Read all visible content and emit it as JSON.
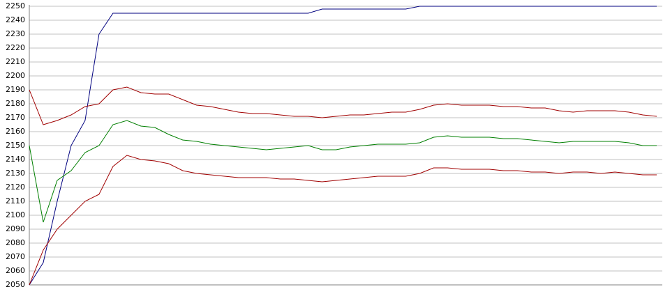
{
  "chart_data": {
    "type": "line",
    "categories": [
      null,
      null,
      null,
      null,
      null,
      null,
      null,
      null,
      null,
      null,
      null,
      null,
      null,
      null,
      null,
      null,
      null,
      null,
      null,
      null,
      null,
      null,
      null,
      null,
      null,
      null,
      null,
      null,
      null,
      null,
      null,
      null,
      null,
      null,
      null,
      null,
      null,
      null,
      null,
      null,
      null,
      null,
      null,
      null,
      null,
      null
    ],
    "series": [
      {
        "color": "#00007f",
        "values": [
          2050,
          2066,
          2110,
          2150,
          2168,
          2230,
          2245,
          2245,
          2245,
          2245,
          2245,
          2245,
          2245,
          2245,
          2245,
          2245,
          2245,
          2245,
          2245,
          2245,
          2245,
          2248,
          2248,
          2248,
          2248,
          2248,
          2248,
          2248,
          2250,
          2250,
          2250,
          2250,
          2250,
          2250,
          2250,
          2250,
          2250,
          2250,
          2250,
          2250,
          2250,
          2250,
          2250,
          2250,
          2250,
          2250
        ]
      },
      {
        "color": "#a00000",
        "values": [
          2190,
          2165,
          2168,
          2172,
          2178,
          2180,
          2190,
          2192,
          2188,
          2187,
          2187,
          2183,
          2179,
          2178,
          2176,
          2174,
          2173,
          2173,
          2172,
          2171,
          2171,
          2170,
          2171,
          2172,
          2172,
          2173,
          2174,
          2174,
          2176,
          2179,
          2180,
          2179,
          2179,
          2179,
          2178,
          2178,
          2177,
          2177,
          2175,
          2174,
          2175,
          2175,
          2175,
          2174,
          2172,
          2171
        ]
      },
      {
        "color": "#007f00",
        "values": [
          2150,
          2095,
          2125,
          2132,
          2145,
          2150,
          2165,
          2168,
          2164,
          2163,
          2158,
          2154,
          2153,
          2151,
          2150,
          2149,
          2148,
          2147,
          2148,
          2149,
          2150,
          2147,
          2147,
          2149,
          2150,
          2151,
          2151,
          2151,
          2152,
          2156,
          2157,
          2156,
          2156,
          2156,
          2155,
          2155,
          2154,
          2153,
          2152,
          2153,
          2153,
          2153,
          2153,
          2152,
          2150,
          2150
        ]
      },
      {
        "color": "#a00000",
        "values": [
          2050,
          2075,
          2090,
          2100,
          2110,
          2115,
          2135,
          2143,
          2140,
          2139,
          2137,
          2132,
          2130,
          2129,
          2128,
          2127,
          2127,
          2127,
          2126,
          2126,
          2125,
          2124,
          2125,
          2126,
          2127,
          2128,
          2128,
          2128,
          2130,
          2134,
          2134,
          2133,
          2133,
          2133,
          2132,
          2132,
          2131,
          2131,
          2130,
          2131,
          2131,
          2130,
          2131,
          2130,
          2129,
          2129
        ]
      }
    ],
    "ylim": [
      2050,
      2250
    ],
    "yticks": [
      2050,
      2060,
      2070,
      2080,
      2090,
      2100,
      2110,
      2120,
      2130,
      2140,
      2150,
      2160,
      2170,
      2180,
      2190,
      2200,
      2210,
      2220,
      2230,
      2240,
      2250
    ],
    "grid": true
  }
}
